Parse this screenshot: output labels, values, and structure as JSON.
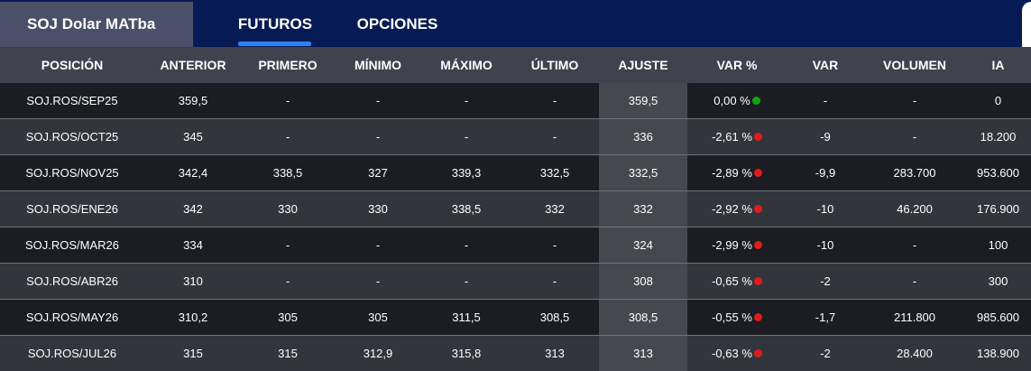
{
  "header": {
    "instrument": "SOJ Dolar MATba",
    "tabs": [
      {
        "label": "FUTUROS",
        "active": true
      },
      {
        "label": "OPCIONES",
        "active": false
      }
    ]
  },
  "colors": {
    "positive": "#12a312",
    "negative": "#e01b1b",
    "accent": "#2f7ff0"
  },
  "table": {
    "columns": [
      "POSICIÓN",
      "ANTERIOR",
      "PRIMERO",
      "MÍNIMO",
      "MÁXIMO",
      "ÚLTIMO",
      "AJUSTE",
      "VAR %",
      "VAR",
      "VOLUMEN",
      "IA"
    ],
    "rows": [
      {
        "pos": "SOJ.ROS/SEP25",
        "anterior": "359,5",
        "primero": "-",
        "minimo": "-",
        "maximo": "-",
        "ultimo": "-",
        "ajuste": "359,5",
        "var_pct": "0,00 %",
        "trend": "positive",
        "var": "-",
        "volumen": "-",
        "ia": "0"
      },
      {
        "pos": "SOJ.ROS/OCT25",
        "anterior": "345",
        "primero": "-",
        "minimo": "-",
        "maximo": "-",
        "ultimo": "-",
        "ajuste": "336",
        "var_pct": "-2,61 %",
        "trend": "negative",
        "var": "-9",
        "volumen": "-",
        "ia": "18.200"
      },
      {
        "pos": "SOJ.ROS/NOV25",
        "anterior": "342,4",
        "primero": "338,5",
        "minimo": "327",
        "maximo": "339,3",
        "ultimo": "332,5",
        "ajuste": "332,5",
        "var_pct": "-2,89 %",
        "trend": "negative",
        "var": "-9,9",
        "volumen": "283.700",
        "ia": "953.600"
      },
      {
        "pos": "SOJ.ROS/ENE26",
        "anterior": "342",
        "primero": "330",
        "minimo": "330",
        "maximo": "338,5",
        "ultimo": "332",
        "ajuste": "332",
        "var_pct": "-2,92 %",
        "trend": "negative",
        "var": "-10",
        "volumen": "46.200",
        "ia": "176.900"
      },
      {
        "pos": "SOJ.ROS/MAR26",
        "anterior": "334",
        "primero": "-",
        "minimo": "-",
        "maximo": "-",
        "ultimo": "-",
        "ajuste": "324",
        "var_pct": "-2,99 %",
        "trend": "negative",
        "var": "-10",
        "volumen": "-",
        "ia": "100"
      },
      {
        "pos": "SOJ.ROS/ABR26",
        "anterior": "310",
        "primero": "-",
        "minimo": "-",
        "maximo": "-",
        "ultimo": "-",
        "ajuste": "308",
        "var_pct": "-0,65 %",
        "trend": "negative",
        "var": "-2",
        "volumen": "-",
        "ia": "300"
      },
      {
        "pos": "SOJ.ROS/MAY26",
        "anterior": "310,2",
        "primero": "305",
        "minimo": "305",
        "maximo": "311,5",
        "ultimo": "308,5",
        "ajuste": "308,5",
        "var_pct": "-0,55 %",
        "trend": "negative",
        "var": "-1,7",
        "volumen": "211.800",
        "ia": "985.600"
      },
      {
        "pos": "SOJ.ROS/JUL26",
        "anterior": "315",
        "primero": "315",
        "minimo": "312,9",
        "maximo": "315,8",
        "ultimo": "313",
        "ajuste": "313",
        "var_pct": "-0,63 %",
        "trend": "negative",
        "var": "-2",
        "volumen": "28.400",
        "ia": "138.900"
      }
    ]
  }
}
